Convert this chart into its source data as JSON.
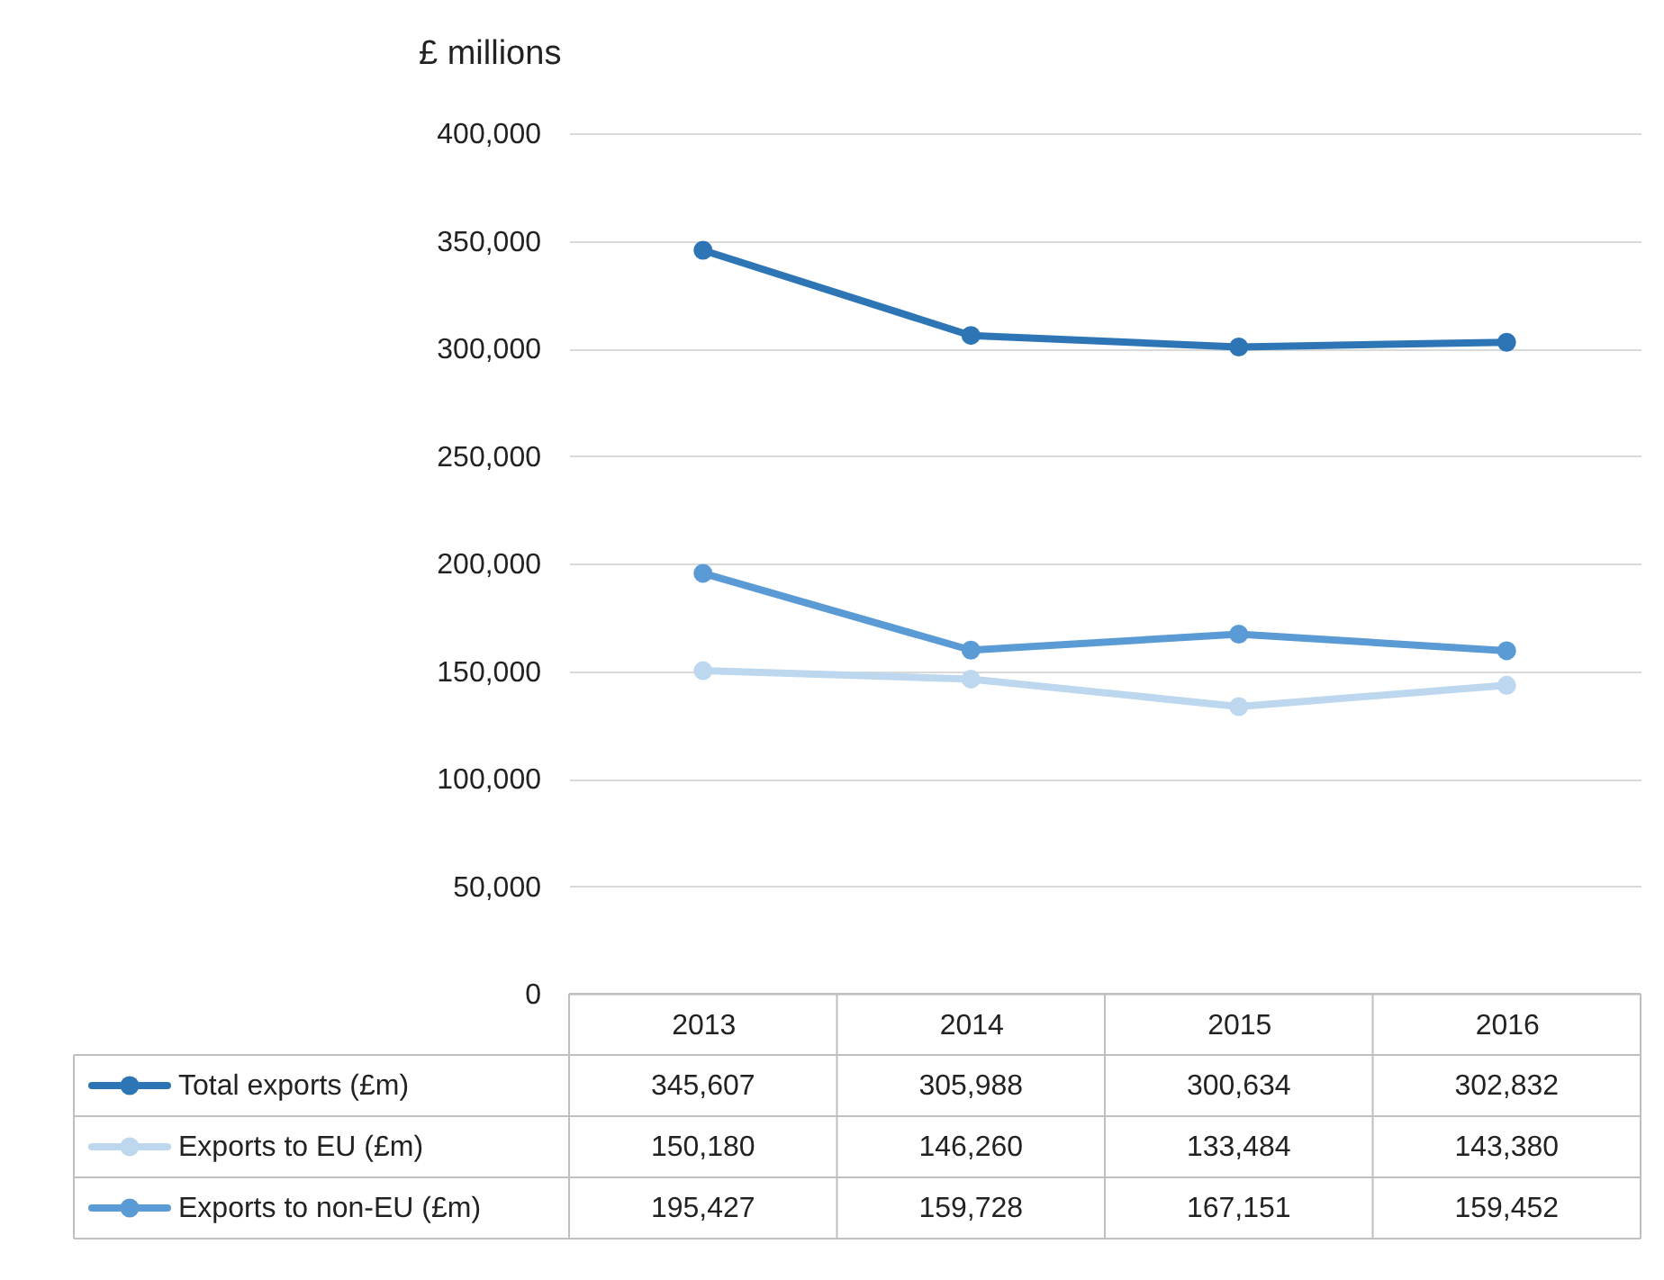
{
  "chart_data": {
    "type": "line",
    "ylabel": "£ millions",
    "categories": [
      "2013",
      "2014",
      "2015",
      "2016"
    ],
    "series": [
      {
        "name": "Total exports (£m)",
        "color": "#2e75b6",
        "values": [
          345607,
          305988,
          300634,
          302832
        ],
        "value_labels": [
          "345,607",
          "305,988",
          "300,634",
          "302,832"
        ]
      },
      {
        "name": "Exports to EU (£m)",
        "color": "#bdd7ee",
        "values": [
          150180,
          146260,
          133484,
          143380
        ],
        "value_labels": [
          "150,180",
          "146,260",
          "133,484",
          "143,380"
        ]
      },
      {
        "name": "Exports to non-EU (£m)",
        "color": "#5b9bd5",
        "values": [
          195427,
          159728,
          167151,
          159452
        ],
        "value_labels": [
          "195,427",
          "159,728",
          "167,151",
          "159,452"
        ]
      }
    ],
    "ylim": [
      0,
      400000
    ],
    "yticks": [
      0,
      {
        "value": 50000,
        "label": "50,000"
      },
      {
        "value": 100000,
        "label": "100,000"
      },
      {
        "value": 150000,
        "label": "150,000"
      },
      {
        "value": 200000,
        "label": "200,000"
      },
      {
        "value": 250000,
        "label": "250,000"
      },
      {
        "value": 300000,
        "label": "300,000"
      },
      {
        "value": 350000,
        "label": "350,000"
      },
      {
        "value": 400000,
        "label": "400,000"
      }
    ],
    "grid": "y",
    "legend": "bottom",
    "marker": "circle",
    "line_style": "solid"
  }
}
